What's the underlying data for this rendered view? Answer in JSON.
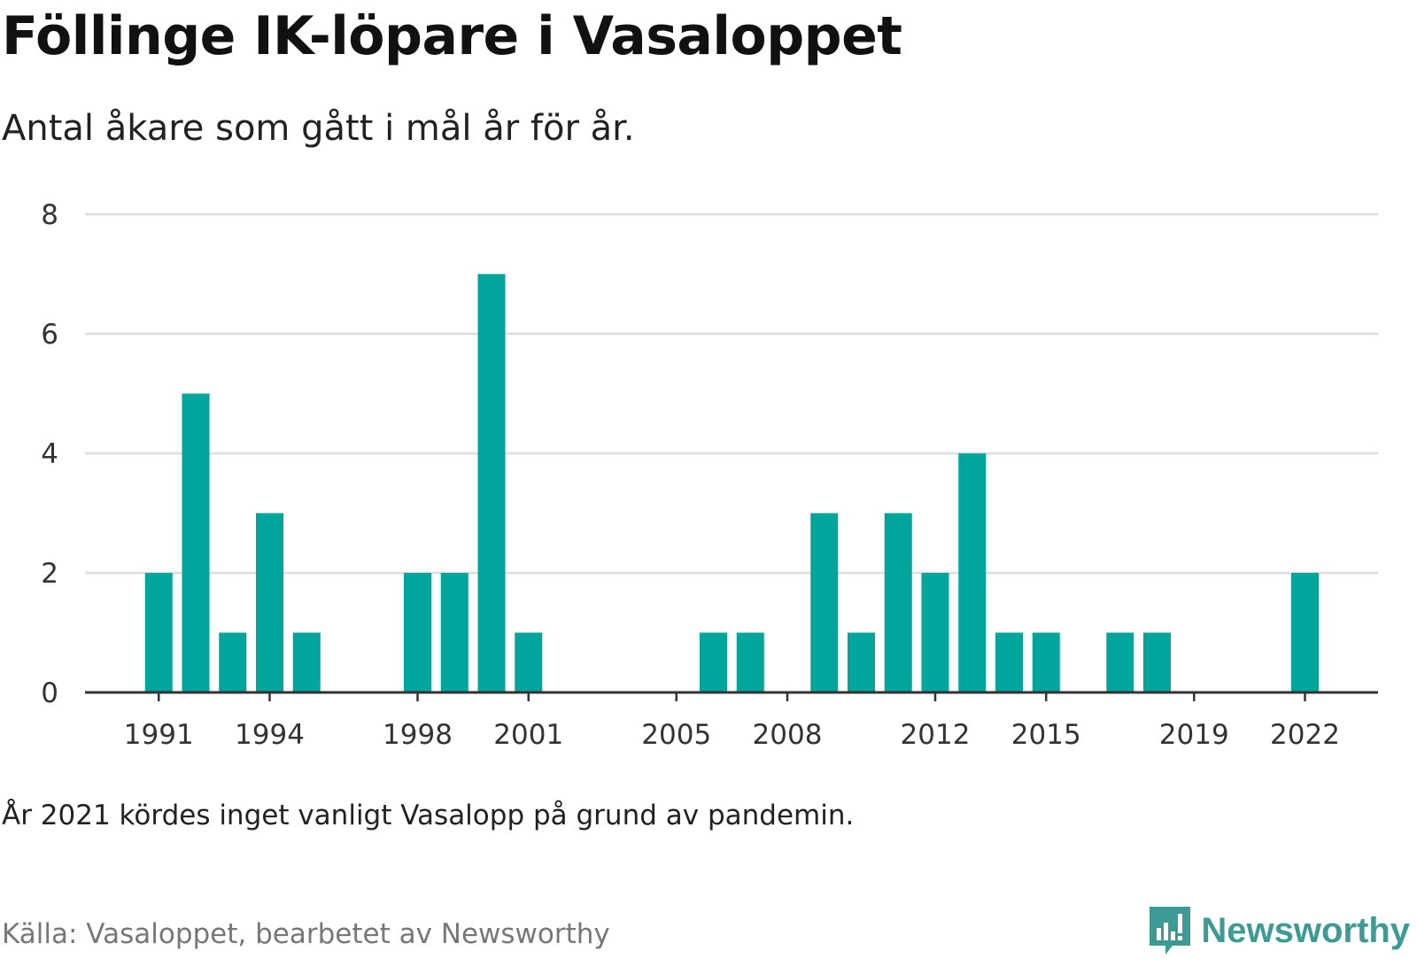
{
  "title": "Föllinge IK-löpare i Vasaloppet",
  "subtitle": "Antal åkare som gått i mål år för år.",
  "note": "År 2021 kördes inget vanligt Vasalopp på grund av pandemin.",
  "source": "Källa: Vasaloppet, bearbetet av Newsworthy",
  "brand": {
    "name": "Newsworthy",
    "icon": "newsworthy-logo-icon"
  },
  "colors": {
    "bar": "#00a59b",
    "grid": "#dddddd",
    "axis": "#333333",
    "brand": "#3d9b96"
  },
  "chart_data": {
    "type": "bar",
    "categories": [
      1990,
      1991,
      1992,
      1993,
      1994,
      1995,
      1996,
      1997,
      1998,
      1999,
      2000,
      2001,
      2002,
      2003,
      2004,
      2005,
      2006,
      2007,
      2008,
      2009,
      2010,
      2011,
      2012,
      2013,
      2014,
      2015,
      2016,
      2017,
      2018,
      2019,
      2020,
      2021,
      2022,
      2023
    ],
    "values": [
      0,
      2,
      5,
      1,
      3,
      1,
      0,
      0,
      2,
      2,
      7,
      1,
      0,
      0,
      0,
      0,
      1,
      1,
      0,
      3,
      1,
      3,
      2,
      4,
      1,
      1,
      0,
      1,
      1,
      0,
      0,
      0,
      2,
      0
    ],
    "xticks": [
      "1991",
      "1994",
      "1998",
      "2001",
      "2005",
      "2008",
      "2012",
      "2015",
      "2019",
      "2022"
    ],
    "yticks": [
      "0",
      "2",
      "4",
      "6",
      "8"
    ],
    "ylim": [
      0,
      8
    ],
    "grid": true,
    "xlabel": "",
    "ylabel": ""
  }
}
